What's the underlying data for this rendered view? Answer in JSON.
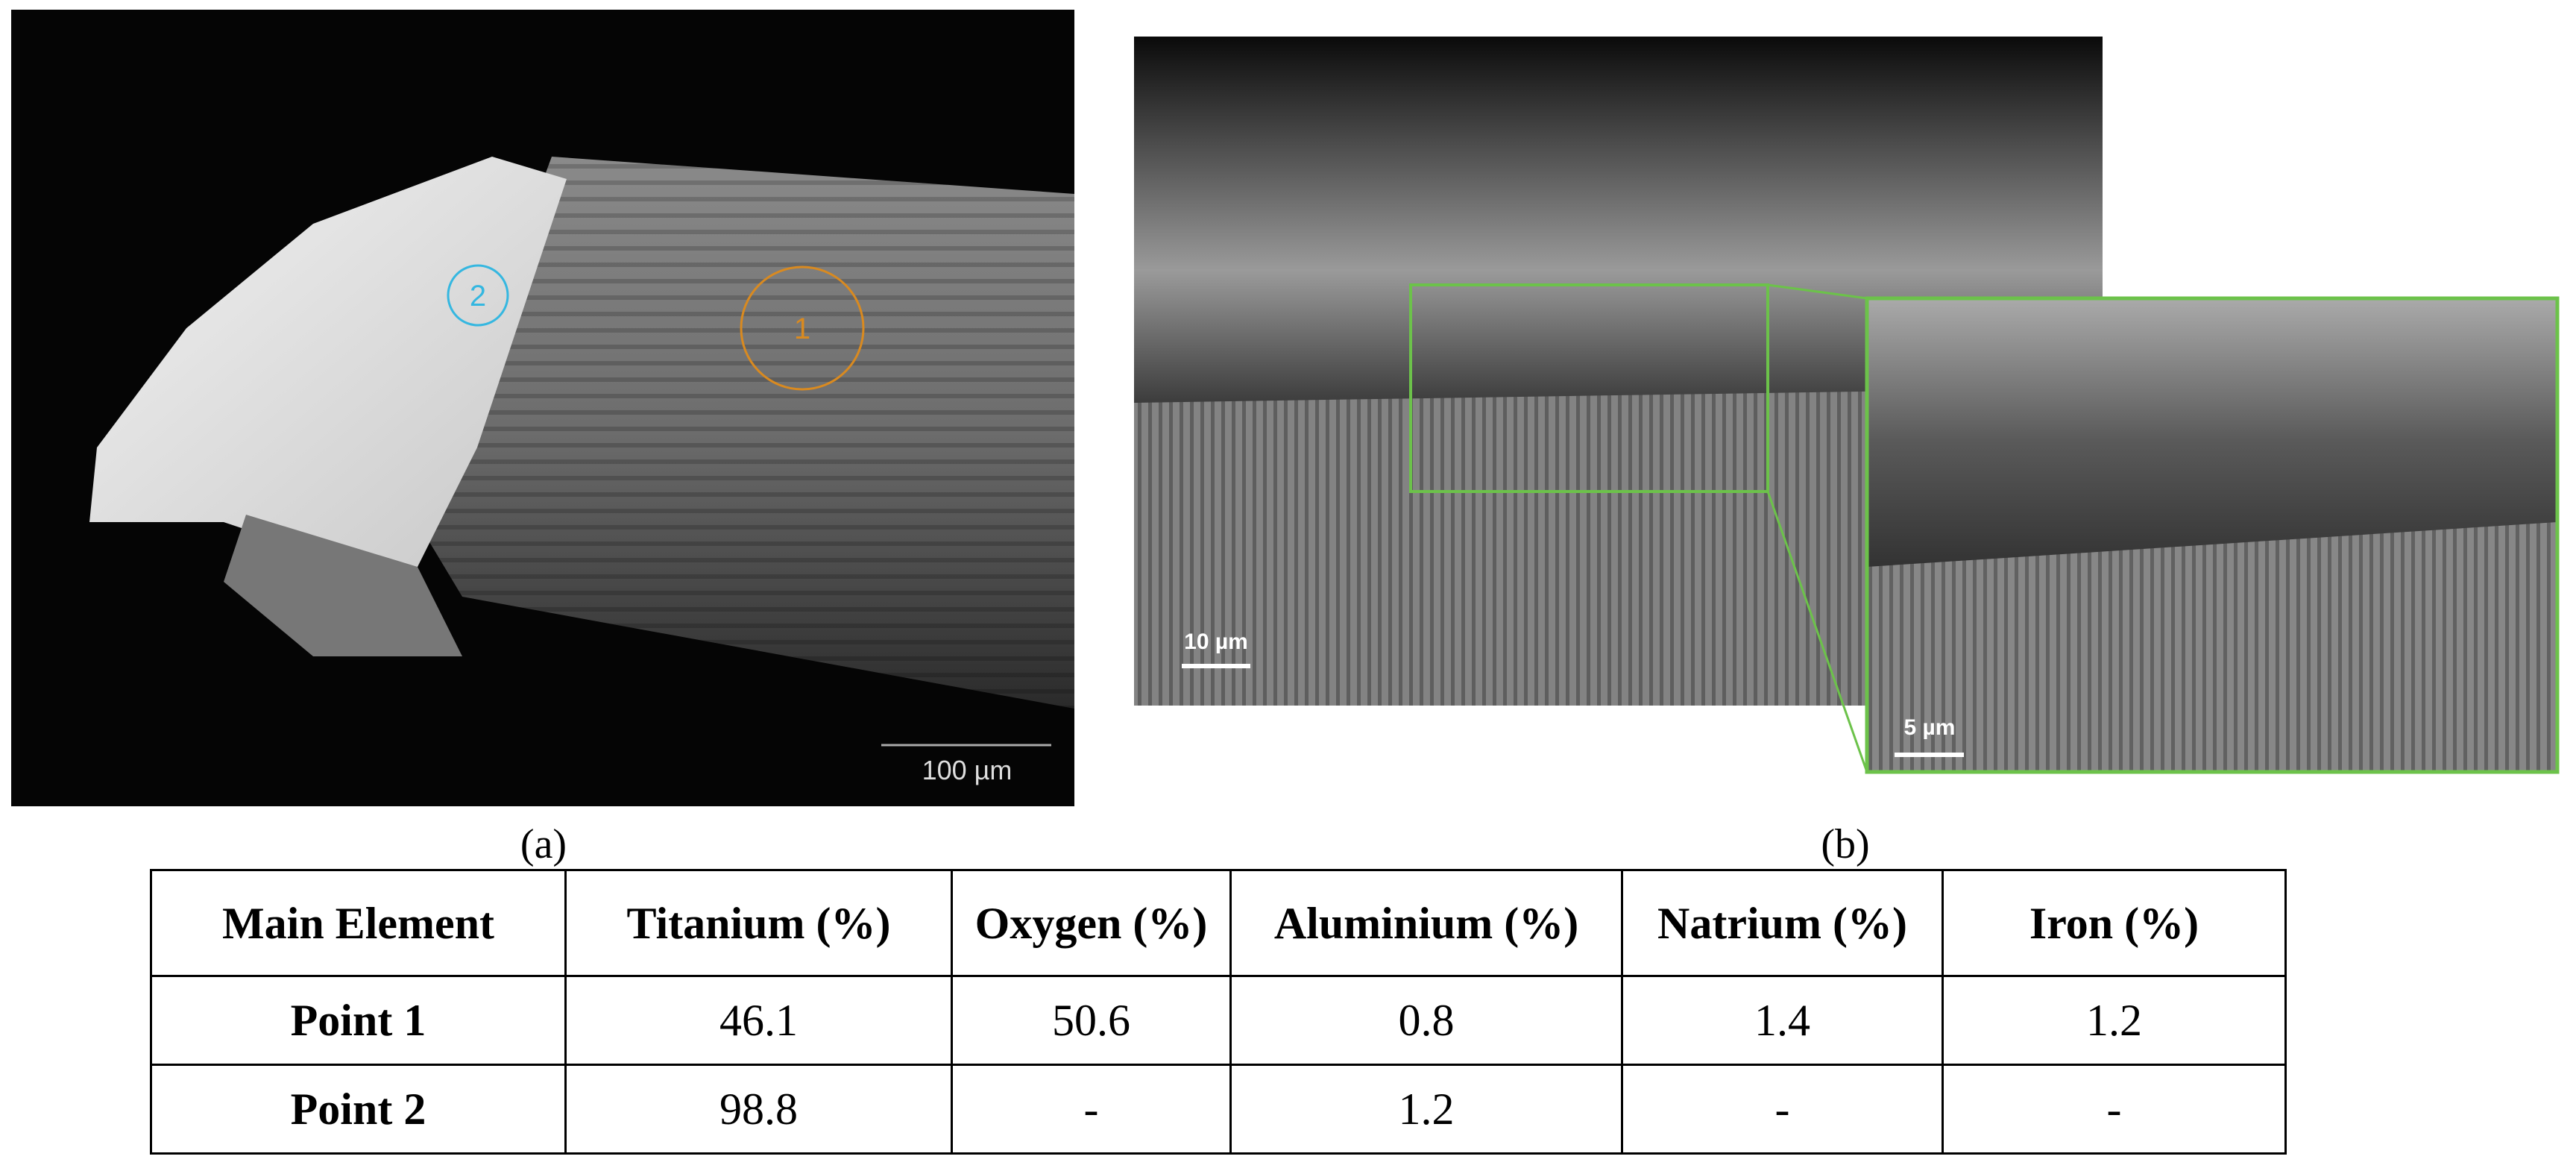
{
  "figure": {
    "panels": [
      {
        "caption": "(a)",
        "point_labels": [
          "2",
          "1"
        ],
        "scale_bar": "100 µm"
      },
      {
        "caption": "(b)",
        "scale_bar": "10 µm",
        "inset_scale_bar": "5 µm"
      }
    ]
  },
  "table": {
    "header": [
      "Main Element",
      "Titanium (%)",
      "Oxygen (%)",
      "Aluminium (%)",
      "Natrium (%)",
      "Iron (%)"
    ],
    "rows": [
      [
        "Point 1",
        "46.1",
        "50.6",
        "0.8",
        "1.4",
        "1.2"
      ],
      [
        "Point 2",
        "98.8",
        "-",
        "1.2",
        "-",
        "-"
      ]
    ]
  }
}
